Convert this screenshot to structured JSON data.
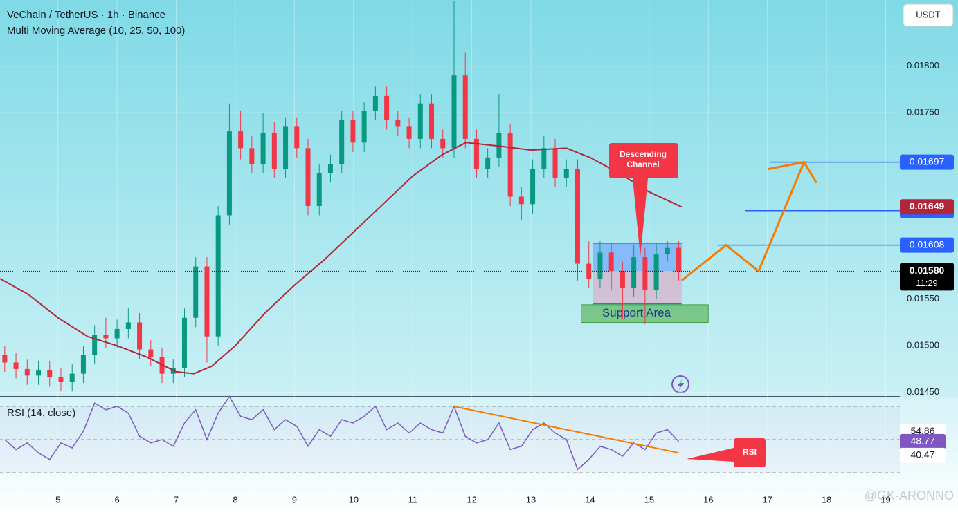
{
  "header": {
    "symbol": "VeChain / TetherUS · 1h · Binance",
    "indicator": "Multi Moving Average (10, 25, 50, 100)",
    "currency": "USDT",
    "watermark": "@GK-ARONNO"
  },
  "chart_data": [
    {
      "type": "candlestick",
      "xlim": [
        4.02,
        19.24
      ],
      "xticks": [
        5,
        6,
        7,
        8,
        9,
        10,
        11,
        12,
        13,
        14,
        15,
        16,
        17,
        18,
        19
      ],
      "ylim": [
        0.01446,
        0.01871
      ],
      "yticks": [
        {
          "value": 0.018,
          "label": "0.01800"
        },
        {
          "value": 0.0175,
          "label": "0.01750"
        },
        {
          "value": 0.0155,
          "label": "0.01550"
        },
        {
          "value": 0.015,
          "label": "0.01500"
        },
        {
          "value": 0.0145,
          "label": "0.01450"
        }
      ],
      "up_color": "#089981",
      "down_color": "#f23645",
      "x": [
        4.1,
        4.29,
        4.48,
        4.67,
        4.86,
        5.05,
        5.24,
        5.43,
        5.62,
        5.81,
        6.0,
        6.19,
        6.38,
        6.57,
        6.76,
        6.95,
        7.14,
        7.33,
        7.52,
        7.71,
        7.9,
        8.09,
        8.28,
        8.47,
        8.66,
        8.85,
        9.04,
        9.23,
        9.42,
        9.61,
        9.8,
        9.99,
        10.18,
        10.37,
        10.56,
        10.75,
        10.94,
        11.13,
        11.32,
        11.51,
        11.7,
        11.89,
        12.08,
        12.27,
        12.46,
        12.65,
        12.84,
        13.03,
        13.22,
        13.41,
        13.6,
        13.79,
        13.98,
        14.17,
        14.36,
        14.55,
        14.74,
        14.93,
        15.12,
        15.31,
        15.5
      ],
      "open": [
        0.0149,
        0.01482,
        0.01475,
        0.01468,
        0.01474,
        0.01466,
        0.01461,
        0.0147,
        0.0149,
        0.01512,
        0.01508,
        0.01518,
        0.01525,
        0.01496,
        0.01488,
        0.0147,
        0.01476,
        0.0153,
        0.01585,
        0.0151,
        0.0164,
        0.0173,
        0.01712,
        0.01695,
        0.01728,
        0.0169,
        0.01735,
        0.01712,
        0.0165,
        0.01685,
        0.01695,
        0.01742,
        0.01718,
        0.01752,
        0.01768,
        0.01742,
        0.01735,
        0.01722,
        0.0176,
        0.01722,
        0.01712,
        0.0179,
        0.01722,
        0.0169,
        0.01702,
        0.01728,
        0.0166,
        0.01652,
        0.0169,
        0.01712,
        0.0168,
        0.0169,
        0.01588,
        0.01572,
        0.016,
        0.0158,
        0.01562,
        0.01595,
        0.0156,
        0.01598,
        0.01605
      ],
      "high": [
        0.015,
        0.01492,
        0.01485,
        0.01484,
        0.01484,
        0.01476,
        0.0148,
        0.015,
        0.01522,
        0.0153,
        0.01528,
        0.0154,
        0.01535,
        0.01506,
        0.01498,
        0.01486,
        0.0154,
        0.01595,
        0.01595,
        0.0165,
        0.0176,
        0.01752,
        0.01725,
        0.0175,
        0.0174,
        0.01745,
        0.01745,
        0.01722,
        0.01695,
        0.01705,
        0.01752,
        0.01752,
        0.01762,
        0.01778,
        0.01778,
        0.01752,
        0.01745,
        0.0177,
        0.0177,
        0.01732,
        0.0187,
        0.01815,
        0.01732,
        0.01712,
        0.0177,
        0.01738,
        0.0167,
        0.017,
        0.01725,
        0.01722,
        0.017,
        0.017,
        0.01612,
        0.01612,
        0.0161,
        0.0159,
        0.01608,
        0.01605,
        0.0161,
        0.01612,
        0.01612
      ],
      "low": [
        0.01472,
        0.01465,
        0.01458,
        0.01458,
        0.01456,
        0.01451,
        0.01451,
        0.0146,
        0.0148,
        0.01498,
        0.01498,
        0.01508,
        0.01486,
        0.01478,
        0.0146,
        0.0146,
        0.01466,
        0.0152,
        0.01482,
        0.015,
        0.0163,
        0.017,
        0.01685,
        0.01685,
        0.0168,
        0.0168,
        0.01702,
        0.0164,
        0.0164,
        0.01675,
        0.01685,
        0.01708,
        0.01708,
        0.01742,
        0.01732,
        0.01725,
        0.01712,
        0.01712,
        0.01712,
        0.01702,
        0.01702,
        0.01712,
        0.0168,
        0.0168,
        0.01692,
        0.0165,
        0.01635,
        0.01642,
        0.0168,
        0.0167,
        0.0167,
        0.0157,
        0.01562,
        0.01562,
        0.0156,
        0.01528,
        0.01552,
        0.01523,
        0.0155,
        0.0159,
        0.0157
      ],
      "close": [
        0.01482,
        0.01475,
        0.01468,
        0.01474,
        0.01466,
        0.01461,
        0.0147,
        0.0149,
        0.01512,
        0.01508,
        0.01518,
        0.01525,
        0.01496,
        0.01488,
        0.0147,
        0.01476,
        0.0153,
        0.01585,
        0.0151,
        0.0164,
        0.0173,
        0.01712,
        0.01695,
        0.01728,
        0.0169,
        0.01735,
        0.01712,
        0.0165,
        0.01685,
        0.01695,
        0.01742,
        0.01718,
        0.01752,
        0.01768,
        0.01742,
        0.01735,
        0.01722,
        0.0176,
        0.01722,
        0.01712,
        0.0179,
        0.01722,
        0.0169,
        0.01702,
        0.01728,
        0.0166,
        0.01652,
        0.0169,
        0.01712,
        0.0168,
        0.0169,
        0.01588,
        0.01572,
        0.016,
        0.0158,
        0.01562,
        0.01595,
        0.0156,
        0.01598,
        0.01605,
        0.0158
      ],
      "ma": {
        "color": "#b2263a",
        "x": [
          4.02,
          4.5,
          5.0,
          5.5,
          6.0,
          6.5,
          7.0,
          7.3,
          7.6,
          8.0,
          8.5,
          9.0,
          9.5,
          10.0,
          10.5,
          11.0,
          11.5,
          11.9,
          12.5,
          13.0,
          13.6,
          14.0,
          14.5,
          15.0,
          15.55
        ],
        "values": [
          0.01572,
          0.01555,
          0.0153,
          0.0151,
          0.015,
          0.01488,
          0.01472,
          0.0147,
          0.01478,
          0.015,
          0.01535,
          0.01565,
          0.01592,
          0.01622,
          0.01652,
          0.01682,
          0.01705,
          0.01718,
          0.01714,
          0.0171,
          0.01712,
          0.01702,
          0.01685,
          0.01665,
          0.01649
        ]
      },
      "levels": [
        {
          "value": 0.01697,
          "x_start": 17.05,
          "color": "#2962ff"
        },
        {
          "value": 0.01645,
          "x_start": 16.62,
          "color": "#2962ff"
        },
        {
          "value": 0.01608,
          "x_start": 16.15,
          "color": "#2962ff"
        }
      ],
      "ma_last": {
        "value": 0.01649,
        "color": "#b2263a"
      },
      "last_price": {
        "value": 0.0158,
        "label": "0.01580",
        "countdown": "11:29"
      },
      "range_box": {
        "x": [
          14.05,
          15.55
        ],
        "top": 0.0161,
        "mid": 0.0158,
        "bottom": 0.01545
      },
      "support": {
        "text": "Support Area",
        "x": [
          13.85,
          16.0
        ],
        "y": [
          0.01525,
          0.01544
        ]
      },
      "callout": {
        "lines": [
          "Descending",
          "Channel"
        ],
        "color": "#f23645"
      },
      "projection": {
        "color": "#f57c00",
        "x": [
          15.55,
          16.3,
          16.85,
          17.62
        ],
        "values": [
          0.0157,
          0.01608,
          0.0158,
          0.01697
        ]
      }
    },
    {
      "type": "line",
      "title": "RSI (14, close)",
      "color": "#7e57c2",
      "xlim": [
        4.02,
        19.24
      ],
      "ylim": [
        21.25,
        75.4
      ],
      "levels": [
        70,
        50,
        30
      ],
      "yticks": [
        {
          "value": 54.86,
          "color": "#ffffff"
        },
        {
          "value": 48.77,
          "color": "#7e57c2"
        },
        {
          "value": 40.47,
          "color": "#ffffff"
        }
      ],
      "x": [
        4.1,
        4.29,
        4.48,
        4.67,
        4.86,
        5.05,
        5.24,
        5.43,
        5.62,
        5.81,
        6.0,
        6.19,
        6.38,
        6.57,
        6.76,
        6.95,
        7.14,
        7.33,
        7.52,
        7.71,
        7.9,
        8.09,
        8.28,
        8.47,
        8.66,
        8.85,
        9.04,
        9.23,
        9.42,
        9.61,
        9.8,
        9.99,
        10.18,
        10.37,
        10.56,
        10.75,
        10.94,
        11.13,
        11.32,
        11.51,
        11.7,
        11.89,
        12.08,
        12.27,
        12.46,
        12.65,
        12.84,
        13.03,
        13.22,
        13.41,
        13.6,
        13.79,
        13.98,
        14.17,
        14.36,
        14.55,
        14.74,
        14.93,
        15.12,
        15.31,
        15.5
      ],
      "values": [
        50,
        44,
        48,
        42,
        38,
        48,
        45,
        55,
        72,
        68,
        70,
        66,
        52,
        48,
        50,
        46,
        60,
        68,
        50,
        66,
        76,
        64,
        62,
        68,
        56,
        62,
        58,
        46,
        56,
        52,
        62,
        60,
        64,
        70,
        56,
        60,
        54,
        60,
        56,
        54,
        70,
        52,
        48,
        50,
        60,
        44,
        46,
        56,
        60,
        54,
        50,
        32,
        38,
        46,
        44,
        40,
        48,
        44,
        54,
        56,
        48.77
      ],
      "trendline": {
        "color": "#f57c00",
        "x": [
          11.7,
          15.5
        ],
        "values": [
          70,
          42
        ]
      },
      "callout": {
        "text": "RSI",
        "color": "#f23645"
      }
    }
  ]
}
